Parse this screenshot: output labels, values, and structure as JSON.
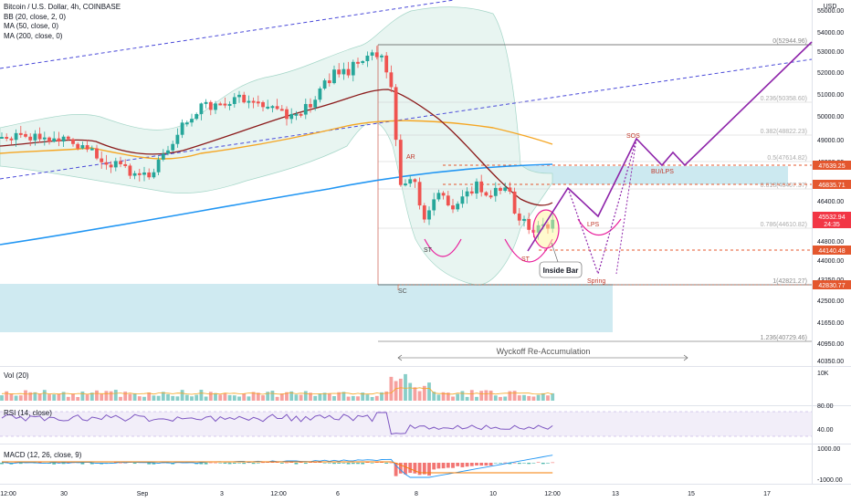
{
  "header": {
    "symbol_line": "Bitcoin / U.S. Dollar, 4h, COINBASE",
    "indicators": [
      "BB (20, close, 2, 0)",
      "MA (50, close, 0)",
      "MA (200, close, 0)"
    ]
  },
  "price_axis": {
    "currency": "USD",
    "ticks": [
      "55000.00",
      "54000.00",
      "53000.00",
      "52000.00",
      "51000.00",
      "50000.00",
      "49000.00",
      "48000.00",
      "47200.00",
      "46400.00",
      "45600.00",
      "44800.00",
      "44000.00",
      "43250.00",
      "42500.00",
      "41650.00",
      "40950.00",
      "40350.00"
    ],
    "tags": [
      {
        "label": "47639.25",
        "color": "#e4572e"
      },
      {
        "label": "46835.71",
        "color": "#e4572e"
      },
      {
        "label": "45532.94",
        "color": "#f23645"
      },
      {
        "label": "24:35",
        "color": "#f23645"
      },
      {
        "label": "44140.48",
        "color": "#e4572e"
      },
      {
        "label": "42830.77",
        "color": "#e4572e"
      }
    ]
  },
  "fib_levels": [
    {
      "ratio": "0(52944.96)"
    },
    {
      "ratio": "0.236(50358.60)"
    },
    {
      "ratio": "0.382(48822.23)"
    },
    {
      "ratio": "0.5(47614.82)"
    },
    {
      "ratio": "0.618(46407.37)"
    },
    {
      "ratio": "0.786(44610.82)"
    },
    {
      "ratio": "1(42821.27)"
    },
    {
      "ratio": "1.236(40729.46)"
    }
  ],
  "annotations": {
    "ar": "AR",
    "sc": "SC",
    "st1": "ST",
    "st2": "ST",
    "inside_bar": "Inside Bar",
    "spring": "Spring",
    "lps": "LPS",
    "sos": "SOS",
    "bu_lps": "BU/LPS",
    "range_label": "Wyckoff Re-Accumulation"
  },
  "volume_pane": {
    "label": "Vol (20)",
    "axis_tick": "10K"
  },
  "rsi_pane": {
    "label": "RSI (14, close)",
    "axis_ticks": [
      "80.00",
      "40.00"
    ]
  },
  "macd_pane": {
    "label": "MACD (12, 26, close, 9)",
    "axis_ticks": [
      "1000.00",
      "-1000.00"
    ]
  },
  "time_axis": {
    "ticks": [
      "12:00",
      "30",
      "Sep",
      "3",
      "12:00",
      "6",
      "8",
      "10",
      "12:00",
      "13",
      "15",
      "17"
    ]
  },
  "colors": {
    "up": "#26a69a",
    "down": "#ef5350",
    "ma50": "#f5a623",
    "ma200": "#2196f3",
    "bb_fill": "#e8f5f1",
    "bb_line": "#a5d6c8",
    "bb_basis": "#8b1a1a",
    "zone": "#bfe3ec",
    "projection": "#8e24aa",
    "ellipse": "#e91e9c",
    "trend": "#4a4ad9",
    "fib_label": "#888888",
    "orange_level": "#e4572e"
  }
}
